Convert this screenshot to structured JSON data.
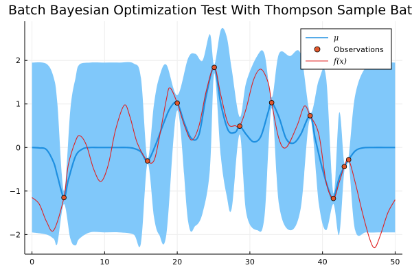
{
  "chart_data": {
    "type": "line",
    "title": "Batch Bayesian Optimization Test With Thompson Sample Batch",
    "xlabel": "",
    "ylabel": "",
    "xlim": [
      -1,
      51
    ],
    "ylim": [
      -2.45,
      2.9
    ],
    "xticks": [
      0,
      10,
      20,
      30,
      40,
      50
    ],
    "yticks": [
      -2,
      -1,
      0,
      1,
      2
    ],
    "xtick_labels": [
      "0",
      "10",
      "20",
      "30",
      "40",
      "50"
    ],
    "ytick_labels": [
      "−2",
      "−1",
      "0",
      "1",
      "2"
    ],
    "grid": true,
    "legend_position": "top-right",
    "colors": {
      "band": "#80c8fa",
      "mu": "#1e8fe0",
      "f": "#e02020",
      "obs": "#e2582c",
      "axis": "#000000",
      "grid": "#eeeeee"
    },
    "legend": [
      {
        "label": "μ",
        "style": "line",
        "color": "#1e8fe0"
      },
      {
        "label": "Observations",
        "style": "marker",
        "color": "#e2582c"
      },
      {
        "label": "f(x)",
        "style": "line",
        "color": "#e02020"
      }
    ],
    "observations": {
      "x": [
        4.4,
        15.9,
        20.0,
        25.1,
        28.6,
        33.0,
        38.3,
        41.5,
        43.0,
        43.6
      ],
      "y": [
        -1.15,
        -0.31,
        1.02,
        1.84,
        0.49,
        1.03,
        0.73,
        -1.17,
        -0.44,
        -0.28
      ]
    },
    "series": [
      {
        "name": "μ",
        "x": [
          0,
          1,
          2,
          3,
          3.5,
          4.4,
          5,
          6,
          7,
          8,
          9,
          10,
          11,
          12,
          13,
          14,
          15,
          15.9,
          17,
          18,
          19,
          20,
          21,
          22,
          23,
          24,
          25.1,
          26,
          27,
          28,
          28.6,
          29.5,
          30.5,
          31.5,
          32.5,
          33,
          34,
          35,
          36,
          37,
          38.3,
          39,
          40,
          41,
          41.5,
          42.3,
          43,
          43.6,
          44.5,
          45.5,
          47,
          48.5,
          50
        ],
        "y": [
          0,
          -0.01,
          -0.05,
          -0.35,
          -0.65,
          -1.15,
          -0.75,
          -0.2,
          -0.03,
          0,
          0,
          0,
          0,
          0,
          0,
          -0.02,
          -0.1,
          -0.31,
          0.05,
          0.5,
          0.9,
          1.02,
          0.55,
          0.2,
          0.3,
          1.2,
          1.84,
          1.0,
          0.4,
          0.35,
          0.49,
          0.3,
          0.13,
          0.25,
          0.8,
          1.03,
          0.7,
          0.2,
          0.1,
          0.3,
          0.73,
          0.2,
          -0.5,
          -1.05,
          -1.17,
          -0.7,
          -0.44,
          -0.28,
          -0.08,
          -0.01,
          0,
          0,
          0
        ]
      },
      {
        "name": "f(x)",
        "x": [
          0,
          1,
          2,
          3,
          4.4,
          5,
          6,
          6.6,
          7.5,
          8.5,
          9.5,
          10.5,
          11.5,
          12.7,
          13.5,
          14.5,
          15.9,
          16.8,
          17.5,
          18.5,
          19,
          20,
          21,
          22,
          23,
          24,
          25.1,
          26,
          27,
          28,
          28.6,
          29.5,
          30.5,
          31.5,
          32.5,
          33,
          34,
          35,
          36.5,
          37.5,
          38.3,
          39.5,
          40.5,
          41.5,
          42.3,
          43,
          43.6,
          44.5,
          45.5,
          46.5,
          47.2,
          48,
          49,
          50
        ],
        "y": [
          -1.15,
          -1.3,
          -1.7,
          -1.9,
          -1.15,
          -0.4,
          0.15,
          0.27,
          0.05,
          -0.5,
          -0.78,
          -0.4,
          0.4,
          0.97,
          0.7,
          0.1,
          -0.31,
          -0.3,
          0.2,
          1.1,
          1.37,
          1.02,
          0.5,
          0.17,
          0.5,
          1.3,
          1.84,
          1.2,
          0.55,
          0.5,
          0.49,
          0.9,
          1.55,
          1.8,
          1.5,
          1.03,
          0.2,
          0.0,
          0.5,
          0.95,
          0.73,
          0.3,
          -0.8,
          -1.17,
          -0.8,
          -0.44,
          -0.28,
          -0.8,
          -1.5,
          -2.1,
          -2.3,
          -2.0,
          -1.5,
          -1.2
        ]
      }
    ],
    "band": {
      "x": [
        0,
        2,
        3,
        3.5,
        4.4,
        5.3,
        6,
        6.5,
        8,
        10,
        12,
        14,
        15,
        15.9,
        16.8,
        17.5,
        18.5,
        20,
        21.5,
        22.5,
        23.5,
        24.5,
        25.1,
        26,
        26.8,
        27.5,
        28.6,
        29.5,
        31,
        32,
        33,
        34,
        35.5,
        37,
        38.3,
        39.5,
        40.5,
        41.5,
        42.3,
        43,
        43.6,
        44.5,
        46,
        48,
        50
      ],
      "upper": [
        1.95,
        1.92,
        1.6,
        1.0,
        -1.0,
        0.9,
        1.6,
        1.9,
        1.95,
        1.95,
        1.95,
        1.93,
        1.6,
        -0.25,
        1.0,
        1.6,
        1.9,
        1.2,
        2.05,
        2.15,
        2.0,
        2.6,
        1.9,
        2.7,
        2.55,
        1.8,
        0.7,
        1.5,
        2.1,
        2.15,
        1.15,
        2.15,
        2.1,
        2.15,
        0.8,
        1.55,
        1.6,
        -1.05,
        0.8,
        -0.35,
        -0.2,
        1.2,
        1.85,
        1.95,
        1.95
      ],
      "lower": [
        -1.95,
        -2.0,
        -2.1,
        -2.2,
        -1.3,
        -2.1,
        -2.25,
        -2.1,
        -1.95,
        -1.95,
        -1.95,
        -2.0,
        -2.2,
        -0.37,
        -1.6,
        -2.0,
        -2.0,
        0.85,
        -1.7,
        -1.8,
        -1.5,
        -0.5,
        1.7,
        -0.2,
        -1.1,
        -1.4,
        0.3,
        -1.5,
        -1.9,
        -1.6,
        0.9,
        -1.3,
        -1.9,
        -1.4,
        0.65,
        -1.3,
        -1.9,
        -1.3,
        -2.0,
        -0.55,
        -0.35,
        -1.9,
        -1.95,
        -1.95,
        -1.95
      ]
    }
  }
}
